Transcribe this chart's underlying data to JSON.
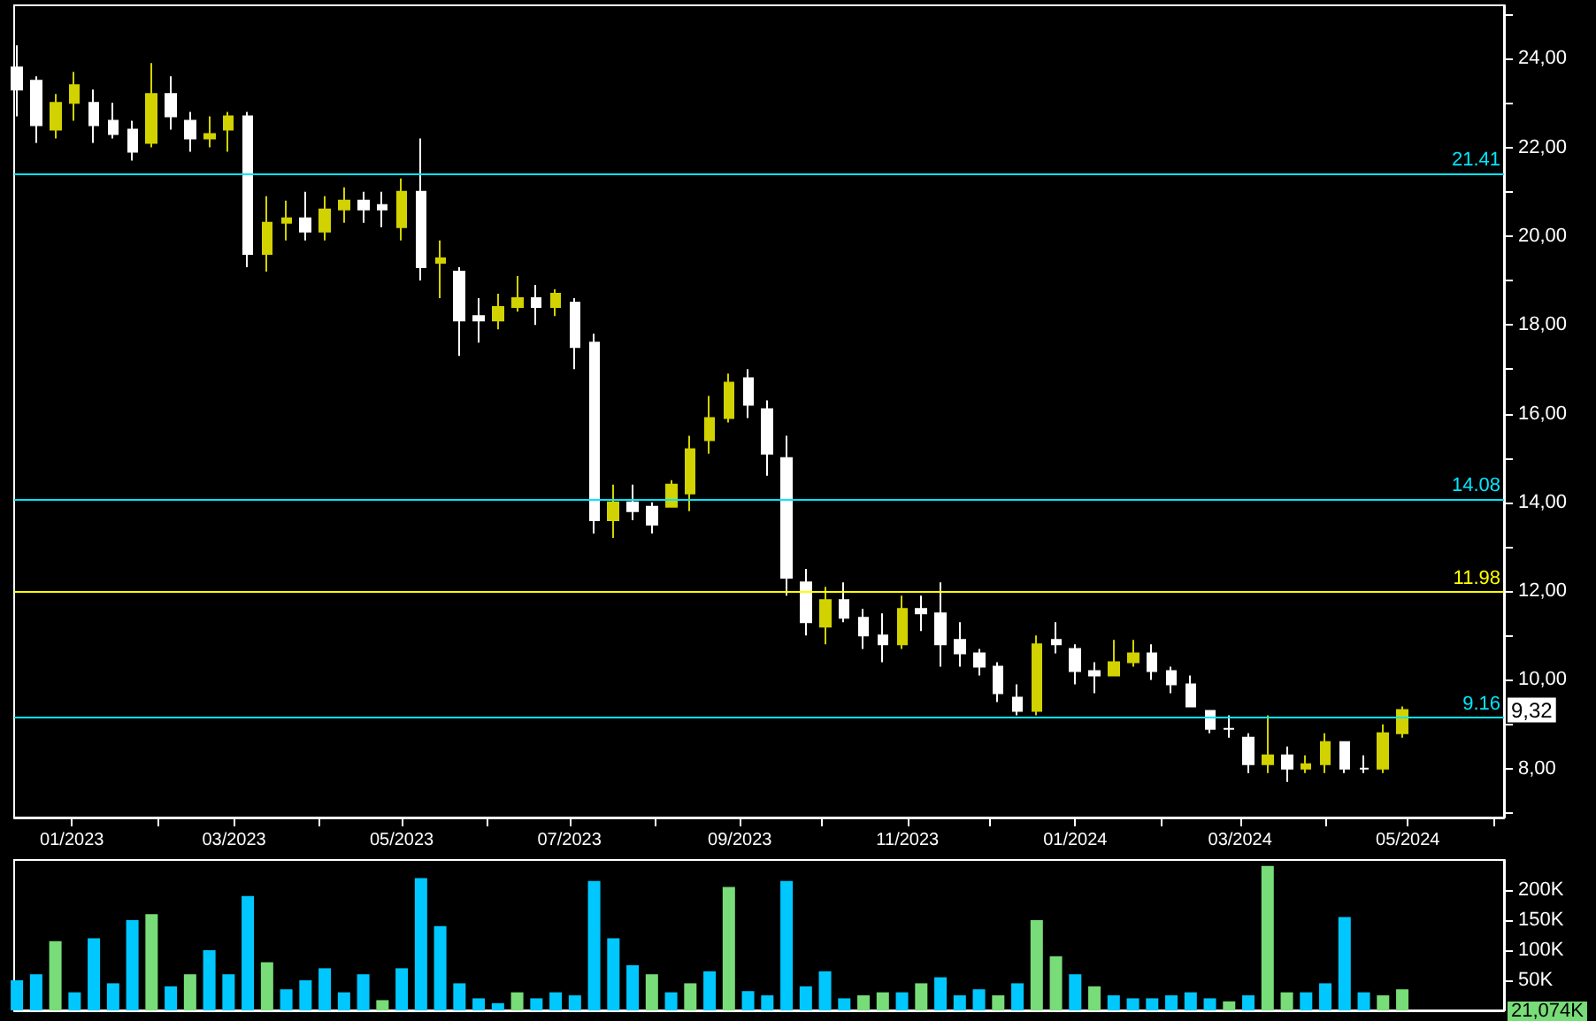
{
  "chart_data": [
    {
      "type": "candlestick",
      "x": [
        "2022-12-12",
        "2022-12-19",
        "2022-12-26",
        "2023-01-02",
        "2023-01-09",
        "2023-01-16",
        "2023-01-23",
        "2023-01-30",
        "2023-02-06",
        "2023-02-13",
        "2023-02-20",
        "2023-02-27",
        "2023-03-06",
        "2023-03-13",
        "2023-03-20",
        "2023-03-27",
        "2023-04-03",
        "2023-04-10",
        "2023-04-17",
        "2023-04-24",
        "2023-05-01",
        "2023-05-08",
        "2023-05-15",
        "2023-05-22",
        "2023-05-29",
        "2023-06-05",
        "2023-06-12",
        "2023-06-19",
        "2023-06-26",
        "2023-07-03",
        "2023-07-10",
        "2023-07-17",
        "2023-07-24",
        "2023-07-31",
        "2023-08-07",
        "2023-08-14",
        "2023-08-21",
        "2023-08-28",
        "2023-09-04",
        "2023-09-11",
        "2023-09-18",
        "2023-09-25",
        "2023-10-02",
        "2023-10-09",
        "2023-10-16",
        "2023-10-23",
        "2023-10-30",
        "2023-11-06",
        "2023-11-13",
        "2023-11-20",
        "2023-11-27",
        "2023-12-04",
        "2023-12-11",
        "2023-12-18",
        "2023-12-25",
        "2024-01-01",
        "2024-01-08",
        "2024-01-15",
        "2024-01-22",
        "2024-01-29",
        "2024-02-05",
        "2024-02-12",
        "2024-02-19",
        "2024-02-26",
        "2024-03-04",
        "2024-03-11",
        "2024-03-18",
        "2024-03-25",
        "2024-04-01",
        "2024-04-08",
        "2024-04-15",
        "2024-04-22",
        "2024-04-29"
      ],
      "ohlc": [
        [
          23.8,
          24.3,
          22.7,
          23.3
        ],
        [
          23.5,
          23.6,
          22.1,
          22.5
        ],
        [
          22.4,
          23.2,
          22.2,
          23.0
        ],
        [
          23.0,
          23.7,
          22.6,
          23.4
        ],
        [
          23.0,
          23.3,
          22.1,
          22.5
        ],
        [
          22.6,
          23.0,
          22.2,
          22.3
        ],
        [
          22.4,
          22.6,
          21.7,
          21.9
        ],
        [
          22.1,
          23.9,
          22.0,
          23.2
        ],
        [
          23.2,
          23.6,
          22.4,
          22.7
        ],
        [
          22.6,
          22.8,
          21.9,
          22.2
        ],
        [
          22.2,
          22.7,
          22.0,
          22.3
        ],
        [
          22.4,
          22.8,
          21.9,
          22.7
        ],
        [
          22.7,
          22.8,
          19.3,
          19.6
        ],
        [
          19.6,
          20.9,
          19.2,
          20.3
        ],
        [
          20.3,
          20.8,
          19.9,
          20.4
        ],
        [
          20.4,
          21.0,
          19.9,
          20.1
        ],
        [
          20.1,
          20.9,
          19.9,
          20.6
        ],
        [
          20.6,
          21.1,
          20.3,
          20.8
        ],
        [
          20.8,
          21.0,
          20.3,
          20.6
        ],
        [
          20.7,
          21.0,
          20.2,
          20.6
        ],
        [
          20.2,
          21.3,
          19.9,
          21.0
        ],
        [
          21.0,
          22.2,
          19.0,
          19.3
        ],
        [
          19.4,
          19.9,
          18.6,
          19.5
        ],
        [
          19.2,
          19.3,
          17.3,
          18.1
        ],
        [
          18.2,
          18.6,
          17.6,
          18.1
        ],
        [
          18.1,
          18.7,
          17.9,
          18.4
        ],
        [
          18.4,
          19.1,
          18.3,
          18.6
        ],
        [
          18.6,
          18.9,
          18.0,
          18.4
        ],
        [
          18.4,
          18.8,
          18.2,
          18.7
        ],
        [
          18.5,
          18.6,
          17.0,
          17.5
        ],
        [
          17.6,
          17.8,
          13.3,
          13.6
        ],
        [
          13.6,
          14.4,
          13.2,
          14.0
        ],
        [
          14.0,
          14.4,
          13.6,
          13.8
        ],
        [
          13.9,
          14.0,
          13.3,
          13.5
        ],
        [
          13.9,
          14.5,
          13.9,
          14.4
        ],
        [
          14.2,
          15.5,
          13.8,
          15.2
        ],
        [
          15.4,
          16.4,
          15.1,
          15.9
        ],
        [
          15.9,
          16.9,
          15.8,
          16.7
        ],
        [
          16.8,
          17.0,
          15.9,
          16.2
        ],
        [
          16.1,
          16.3,
          14.6,
          15.1
        ],
        [
          15.0,
          15.5,
          11.9,
          12.3
        ],
        [
          12.2,
          12.5,
          11.0,
          11.3
        ],
        [
          11.2,
          12.1,
          10.8,
          11.8
        ],
        [
          11.8,
          12.2,
          11.3,
          11.4
        ],
        [
          11.4,
          11.6,
          10.7,
          11.0
        ],
        [
          11.0,
          11.5,
          10.4,
          10.8
        ],
        [
          10.8,
          11.9,
          10.7,
          11.6
        ],
        [
          11.6,
          11.9,
          11.1,
          11.5
        ],
        [
          11.5,
          12.2,
          10.3,
          10.8
        ],
        [
          10.9,
          11.3,
          10.3,
          10.6
        ],
        [
          10.6,
          10.7,
          10.1,
          10.3
        ],
        [
          10.3,
          10.4,
          9.5,
          9.7
        ],
        [
          9.6,
          9.9,
          9.2,
          9.3
        ],
        [
          9.3,
          11.0,
          9.2,
          10.8
        ],
        [
          10.9,
          11.3,
          10.6,
          10.8
        ],
        [
          10.7,
          10.8,
          9.9,
          10.2
        ],
        [
          10.2,
          10.4,
          9.7,
          10.1
        ],
        [
          10.1,
          10.9,
          10.1,
          10.4
        ],
        [
          10.4,
          10.9,
          10.3,
          10.6
        ],
        [
          10.6,
          10.8,
          10.0,
          10.2
        ],
        [
          10.2,
          10.3,
          9.7,
          9.9
        ],
        [
          9.9,
          10.1,
          9.4,
          9.4
        ],
        [
          9.3,
          9.3,
          8.8,
          8.9
        ],
        [
          8.9,
          9.2,
          8.7,
          8.9
        ],
        [
          8.7,
          8.8,
          7.9,
          8.1
        ],
        [
          8.1,
          9.2,
          7.9,
          8.3
        ],
        [
          8.3,
          8.5,
          7.7,
          8.0
        ],
        [
          8.0,
          8.3,
          7.9,
          8.1
        ],
        [
          8.1,
          8.8,
          7.9,
          8.6
        ],
        [
          8.6,
          8.6,
          7.9,
          8.0
        ],
        [
          8.0,
          8.3,
          7.9,
          8.0
        ],
        [
          8.0,
          9.0,
          7.9,
          8.8
        ],
        [
          8.8,
          9.4,
          8.7,
          9.32
        ]
      ],
      "colors": [
        "#ffffff",
        "#ffffff",
        "#d2d200",
        "#d2d200",
        "#ffffff",
        "#ffffff",
        "#ffffff",
        "#d2d200",
        "#ffffff",
        "#ffffff",
        "#d2d200",
        "#d2d200",
        "#ffffff",
        "#d2d200",
        "#d2d200",
        "#ffffff",
        "#d2d200",
        "#d2d200",
        "#ffffff",
        "#ffffff",
        "#d2d200",
        "#ffffff",
        "#d2d200",
        "#ffffff",
        "#ffffff",
        "#d2d200",
        "#d2d200",
        "#ffffff",
        "#d2d200",
        "#ffffff",
        "#ffffff",
        "#d2d200",
        "#ffffff",
        "#ffffff",
        "#d2d200",
        "#d2d200",
        "#d2d200",
        "#d2d200",
        "#ffffff",
        "#ffffff",
        "#ffffff",
        "#ffffff",
        "#d2d200",
        "#ffffff",
        "#ffffff",
        "#ffffff",
        "#d2d200",
        "#ffffff",
        "#ffffff",
        "#ffffff",
        "#ffffff",
        "#ffffff",
        "#ffffff",
        "#d2d200",
        "#ffffff",
        "#ffffff",
        "#ffffff",
        "#d2d200",
        "#d2d200",
        "#ffffff",
        "#ffffff",
        "#ffffff",
        "#ffffff",
        "#ffffff",
        "#ffffff",
        "#d2d200",
        "#ffffff",
        "#d2d200",
        "#d2d200",
        "#ffffff",
        "#ffffff",
        "#d2d200",
        "#d2d200"
      ],
      "xlim": [
        "2022-12-11",
        "2024-06-05"
      ],
      "xticks": [
        {
          "value": "2023-01-01",
          "label": "01/2023"
        },
        {
          "value": "2023-02-01",
          "label": null
        },
        {
          "value": "2023-03-01",
          "label": "03/2023"
        },
        {
          "value": "2023-04-01",
          "label": null
        },
        {
          "value": "2023-05-01",
          "label": "05/2023"
        },
        {
          "value": "2023-06-01",
          "label": null
        },
        {
          "value": "2023-07-01",
          "label": "07/2023"
        },
        {
          "value": "2023-08-01",
          "label": null
        },
        {
          "value": "2023-09-01",
          "label": "09/2023"
        },
        {
          "value": "2023-10-01",
          "label": null
        },
        {
          "value": "2023-11-01",
          "label": "11/2023"
        },
        {
          "value": "2023-12-01",
          "label": null
        },
        {
          "value": "2024-01-01",
          "label": "01/2024"
        },
        {
          "value": "2024-02-01",
          "label": null
        },
        {
          "value": "2024-03-01",
          "label": "03/2024"
        },
        {
          "value": "2024-04-01",
          "label": null
        },
        {
          "value": "2024-05-01",
          "label": "05/2024"
        },
        {
          "value": "2024-06-01",
          "label": null
        }
      ],
      "ylim": [
        6.9,
        25.2
      ],
      "yticks": [
        {
          "value": 7,
          "label": null
        },
        {
          "value": 8,
          "label": "8,00"
        },
        {
          "value": 9,
          "label": null
        },
        {
          "value": 10,
          "label": "10,00"
        },
        {
          "value": 11,
          "label": null
        },
        {
          "value": 12,
          "label": "12,00"
        },
        {
          "value": 13,
          "label": null
        },
        {
          "value": 14,
          "label": "14,00"
        },
        {
          "value": 15,
          "label": null
        },
        {
          "value": 16,
          "label": "16,00"
        },
        {
          "value": 17,
          "label": null
        },
        {
          "value": 18,
          "label": "18,00"
        },
        {
          "value": 19,
          "label": null
        },
        {
          "value": 20,
          "label": "20,00"
        },
        {
          "value": 21,
          "label": null
        },
        {
          "value": 22,
          "label": "22,00"
        },
        {
          "value": 23,
          "label": null
        },
        {
          "value": 24,
          "label": "24,00"
        },
        {
          "value": 25,
          "label": null
        }
      ],
      "ref_lines": [
        {
          "axis": "y",
          "value": 21.41,
          "label": "21.41",
          "color": "#00e6ff"
        },
        {
          "axis": "y",
          "value": 14.08,
          "label": "14.08",
          "color": "#00e6ff"
        },
        {
          "axis": "y",
          "value": 11.98,
          "label": "11.98",
          "color": "#ffff00"
        },
        {
          "axis": "y",
          "value": 9.16,
          "label": "9.16",
          "color": "#00e6ff"
        }
      ],
      "annotations": [
        {
          "text": "9,32",
          "y": 9.32
        }
      ]
    },
    {
      "type": "bar",
      "x": [
        "2022-12-12",
        "2022-12-19",
        "2022-12-26",
        "2023-01-02",
        "2023-01-09",
        "2023-01-16",
        "2023-01-23",
        "2023-01-30",
        "2023-02-06",
        "2023-02-13",
        "2023-02-20",
        "2023-02-27",
        "2023-03-06",
        "2023-03-13",
        "2023-03-20",
        "2023-03-27",
        "2023-04-03",
        "2023-04-10",
        "2023-04-17",
        "2023-04-24",
        "2023-05-01",
        "2023-05-08",
        "2023-05-15",
        "2023-05-22",
        "2023-05-29",
        "2023-06-05",
        "2023-06-12",
        "2023-06-19",
        "2023-06-26",
        "2023-07-03",
        "2023-07-10",
        "2023-07-17",
        "2023-07-24",
        "2023-07-31",
        "2023-08-07",
        "2023-08-14",
        "2023-08-21",
        "2023-08-28",
        "2023-09-04",
        "2023-09-11",
        "2023-09-18",
        "2023-09-25",
        "2023-10-02",
        "2023-10-09",
        "2023-10-16",
        "2023-10-23",
        "2023-10-30",
        "2023-11-06",
        "2023-11-13",
        "2023-11-20",
        "2023-11-27",
        "2023-12-04",
        "2023-12-11",
        "2023-12-18",
        "2023-12-25",
        "2024-01-01",
        "2024-01-08",
        "2024-01-15",
        "2024-01-22",
        "2024-01-29",
        "2024-02-05",
        "2024-02-12",
        "2024-02-19",
        "2024-02-26",
        "2024-03-04",
        "2024-03-11",
        "2024-03-18",
        "2024-03-25",
        "2024-04-01",
        "2024-04-08",
        "2024-04-15",
        "2024-04-22",
        "2024-04-29"
      ],
      "values": [
        50000,
        60000,
        115000,
        30000,
        120000,
        45000,
        150000,
        160000,
        40000,
        60000,
        100000,
        60000,
        190000,
        80000,
        35000,
        50000,
        70000,
        30000,
        60000,
        17000,
        70000,
        220000,
        140000,
        45000,
        20000,
        12000,
        30000,
        20000,
        30000,
        25000,
        215000,
        120000,
        75000,
        60000,
        30000,
        45000,
        65000,
        205000,
        32000,
        25000,
        215000,
        40000,
        65000,
        20000,
        25000,
        30000,
        30000,
        45000,
        55000,
        25000,
        35000,
        25000,
        45000,
        150000,
        90000,
        60000,
        40000,
        25000,
        20000,
        20000,
        25000,
        30000,
        20000,
        15000,
        25000,
        240000,
        30000,
        30000,
        45000,
        155000,
        30000,
        25000,
        35000
      ],
      "colors": [
        "#00c8ff",
        "#00c8ff",
        "#78dc78",
        "#00c8ff",
        "#00c8ff",
        "#00c8ff",
        "#00c8ff",
        "#78dc78",
        "#00c8ff",
        "#78dc78",
        "#00c8ff",
        "#00c8ff",
        "#00c8ff",
        "#78dc78",
        "#00c8ff",
        "#00c8ff",
        "#00c8ff",
        "#00c8ff",
        "#00c8ff",
        "#78dc78",
        "#00c8ff",
        "#00c8ff",
        "#00c8ff",
        "#00c8ff",
        "#00c8ff",
        "#00c8ff",
        "#78dc78",
        "#00c8ff",
        "#00c8ff",
        "#00c8ff",
        "#00c8ff",
        "#00c8ff",
        "#00c8ff",
        "#78dc78",
        "#00c8ff",
        "#78dc78",
        "#00c8ff",
        "#78dc78",
        "#00c8ff",
        "#00c8ff",
        "#00c8ff",
        "#00c8ff",
        "#00c8ff",
        "#00c8ff",
        "#78dc78",
        "#78dc78",
        "#00c8ff",
        "#78dc78",
        "#00c8ff",
        "#00c8ff",
        "#00c8ff",
        "#78dc78",
        "#00c8ff",
        "#78dc78",
        "#78dc78",
        "#00c8ff",
        "#78dc78",
        "#00c8ff",
        "#00c8ff",
        "#00c8ff",
        "#00c8ff",
        "#00c8ff",
        "#00c8ff",
        "#78dc78",
        "#00c8ff",
        "#78dc78",
        "#78dc78",
        "#00c8ff",
        "#00c8ff",
        "#00c8ff",
        "#00c8ff",
        "#78dc78",
        "#78dc78"
      ],
      "xlim": [
        "2022-12-11",
        "2024-06-05"
      ],
      "ylim": [
        0,
        250000
      ],
      "yticks": [
        {
          "value": 50000,
          "label": "50K"
        },
        {
          "value": 100000,
          "label": "100K"
        },
        {
          "value": 150000,
          "label": "150K"
        },
        {
          "value": 200000,
          "label": "200K"
        }
      ],
      "tick_labels": "y",
      "annotations": [
        "21,074K"
      ]
    }
  ]
}
